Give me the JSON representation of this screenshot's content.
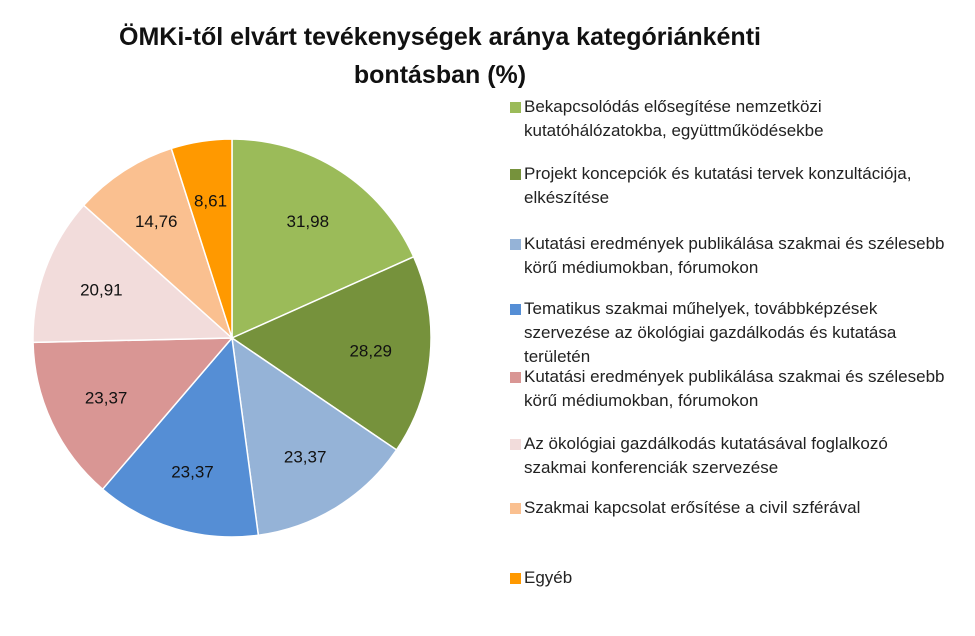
{
  "chart_data": {
    "type": "pie",
    "title_lines": [
      "ÖMKi-től elvárt tevékenységek aránya kategóriánkénti",
      "bontásban (%)"
    ],
    "legend_position": "right",
    "series": [
      {
        "name": "Bekapcsolódás elősegítése nemzetközi kutatóhálózatokba, együttműködésekbe",
        "value": 31.98,
        "label": "31,98",
        "color": "#9bbb59"
      },
      {
        "name": "Projekt koncepciók és kutatási tervek konzultációja, elkészítése",
        "value": 28.29,
        "label": "28,29",
        "color": "#76923c"
      },
      {
        "name": "Kutatási eredmények publikálása szakmai és szélesebb körű médiumokban, fórumokon",
        "value": 23.37,
        "label": "23,37",
        "color": "#95b3d7"
      },
      {
        "name": "Tematikus szakmai műhelyek, továbbképzések szervezése az ökológiai gazdálkodás és kutatása területén",
        "value": 23.37,
        "label": "23,37",
        "color": "#558ed5"
      },
      {
        "name": "Kutatási eredmények publikálása szakmai és szélesebb körű médiumokban, fórumokon",
        "value": 23.37,
        "label": "23,37",
        "color": "#d99694"
      },
      {
        "name": "Az ökológiai gazdálkodás kutatásával foglalkozó szakmai konferenciák szervezése",
        "value": 20.91,
        "label": "20,91",
        "color": "#f2dcdb"
      },
      {
        "name": "Szakmai kapcsolat erősítése a civil szférával",
        "value": 14.76,
        "label": "14,76",
        "color": "#fac090"
      },
      {
        "name": "Egyéb",
        "value": 8.61,
        "label": "8,61",
        "color": "#ff9900"
      }
    ]
  }
}
